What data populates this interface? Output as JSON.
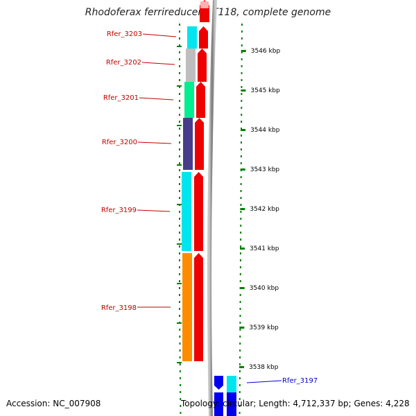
{
  "title": "Rhodoferax ferrireducens T118, complete genome",
  "accession": "Accession: NC_007908",
  "topology": "Topology: circular; Length: 4,712,337 bp; Genes: 4,228",
  "colors": {
    "tick": "#008000",
    "backbone": "#888888",
    "orf": "#ee0000",
    "label_red": "#c00000",
    "label_blue": "#0000cc"
  },
  "scale": {
    "unit": "kbp",
    "ticks": [
      "3546 kbp",
      "3545 kbp",
      "3544 kbp",
      "3543 kbp",
      "3542 kbp",
      "3541 kbp",
      "3540 kbp",
      "3539 kbp",
      "3538 kbp"
    ]
  },
  "genes": [
    {
      "name": "Rfer_3203",
      "color": "#00e5ee",
      "strand": "forward"
    },
    {
      "name": "Rfer_3202",
      "color": "#bebebe",
      "strand": "forward"
    },
    {
      "name": "Rfer_3201",
      "color": "#00ee90",
      "strand": "forward"
    },
    {
      "name": "Rfer_3200",
      "color": "#483d8b",
      "strand": "forward"
    },
    {
      "name": "Rfer_3199",
      "color": "#00e5ee",
      "strand": "forward"
    },
    {
      "name": "Rfer_3198",
      "color": "#ff8c00",
      "strand": "forward"
    },
    {
      "name": "Rfer_3197",
      "color": "#00e5ee",
      "strand": "reverse"
    }
  ]
}
